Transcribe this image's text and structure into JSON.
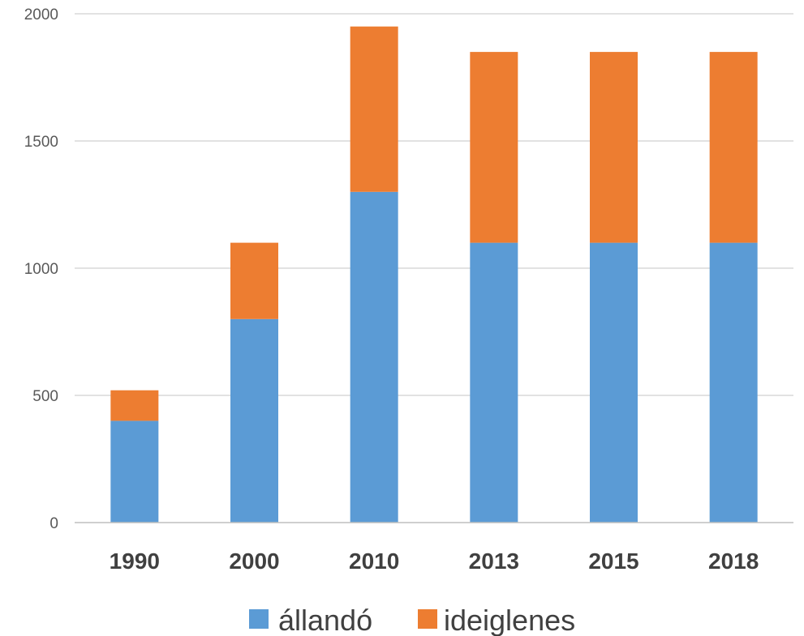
{
  "chart_data": {
    "type": "bar",
    "stacked": true,
    "categories": [
      "1990",
      "2000",
      "2010",
      "2013",
      "2015",
      "2018"
    ],
    "series": [
      {
        "name": "állandó",
        "color": "#5b9bd5",
        "values": [
          400,
          800,
          1300,
          1100,
          1100,
          1100
        ]
      },
      {
        "name": "ideiglenes",
        "color": "#ed7d31",
        "values": [
          120,
          300,
          650,
          750,
          750,
          750
        ]
      }
    ],
    "yticks": [
      "0",
      "500",
      "1000",
      "1500",
      "2000"
    ],
    "ylim": [
      0,
      2000
    ],
    "grid": true,
    "legend": "bottom"
  }
}
